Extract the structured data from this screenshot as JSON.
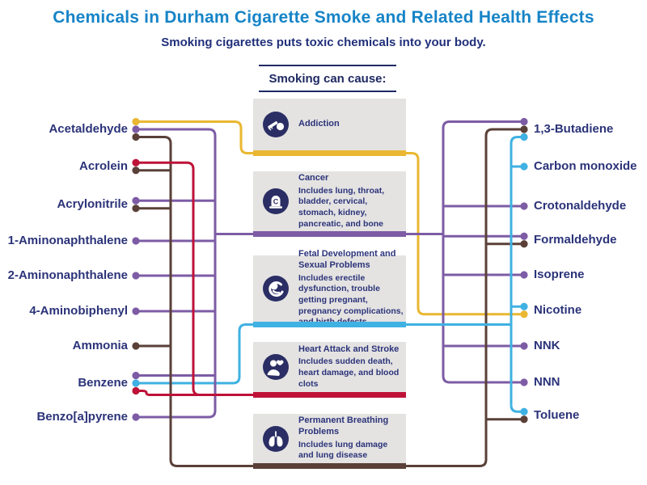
{
  "title": "Chemicals in Durham Cigarette Smoke and Related Health Effects",
  "subtitle": "Smoking cigarettes puts toxic chemicals into your body.",
  "center_header": "Smoking can cause:",
  "colors": {
    "title_blue": "#1684C7",
    "label_navy": "#2B3379",
    "icon_navy": "#2A2E64",
    "box_gray": "#E4E3E2",
    "addiction": "#E9B731",
    "cancer": "#7D5CA5",
    "fetal": "#3FB1E2",
    "heart": "#BE1238",
    "breathing": "#5A4038"
  },
  "effects": [
    {
      "id": "addiction",
      "title": "Addiction",
      "desc": "",
      "icon": "cigarette-icon",
      "color": "#E9B731"
    },
    {
      "id": "cancer",
      "title": "Cancer",
      "desc": "Includes lung, throat, bladder, cervical, stomach, kidney, pancreatic, and bone",
      "icon": "tombstone-icon",
      "color": "#7D5CA5"
    },
    {
      "id": "fetal",
      "title": "Fetal Development and Sexual Problems",
      "desc": "Includes erectile dysfunction, trouble getting pregnant, pregnancy complications, and birth defects",
      "icon": "fetus-icon",
      "color": "#3FB1E2"
    },
    {
      "id": "heart",
      "title": "Heart Attack and Stroke",
      "desc": "Includes sudden death, heart damage, and blood clots",
      "icon": "heart-person-icon",
      "color": "#BE1238"
    },
    {
      "id": "breathing",
      "title": "Permanent Breathing Problems",
      "desc": "Includes lung damage and lung disease",
      "icon": "lungs-icon",
      "color": "#5A4038"
    }
  ],
  "left_chemicals": [
    {
      "label": "Acetaldehyde",
      "effects": [
        "addiction",
        "cancer",
        "breathing"
      ]
    },
    {
      "label": "Acrolein",
      "effects": [
        "heart",
        "breathing"
      ]
    },
    {
      "label": "Acrylonitrile",
      "effects": [
        "cancer",
        "breathing"
      ]
    },
    {
      "label": "1-Aminonaphthalene",
      "effects": [
        "cancer"
      ]
    },
    {
      "label": "2-Aminonaphthalene",
      "effects": [
        "cancer"
      ]
    },
    {
      "label": "4-Aminobiphenyl",
      "effects": [
        "cancer"
      ]
    },
    {
      "label": "Ammonia",
      "effects": [
        "breathing"
      ]
    },
    {
      "label": "Benzene",
      "effects": [
        "cancer",
        "fetal",
        "heart"
      ]
    },
    {
      "label": "Benzo[a]pyrene",
      "effects": [
        "cancer"
      ]
    }
  ],
  "right_chemicals": [
    {
      "label": "1,3-Butadiene",
      "effects": [
        "cancer",
        "breathing",
        "fetal"
      ]
    },
    {
      "label": "Carbon monoxide",
      "effects": [
        "fetal"
      ]
    },
    {
      "label": "Crotonaldehyde",
      "effects": [
        "cancer"
      ]
    },
    {
      "label": "Formaldehyde",
      "effects": [
        "cancer",
        "breathing"
      ]
    },
    {
      "label": "Isoprene",
      "effects": [
        "cancer"
      ]
    },
    {
      "label": "Nicotine",
      "effects": [
        "fetal",
        "addiction"
      ]
    },
    {
      "label": "NNK",
      "effects": [
        "cancer"
      ]
    },
    {
      "label": "NNN",
      "effects": [
        "cancer"
      ]
    },
    {
      "label": "Toluene",
      "effects": [
        "fetal",
        "breathing"
      ]
    }
  ]
}
